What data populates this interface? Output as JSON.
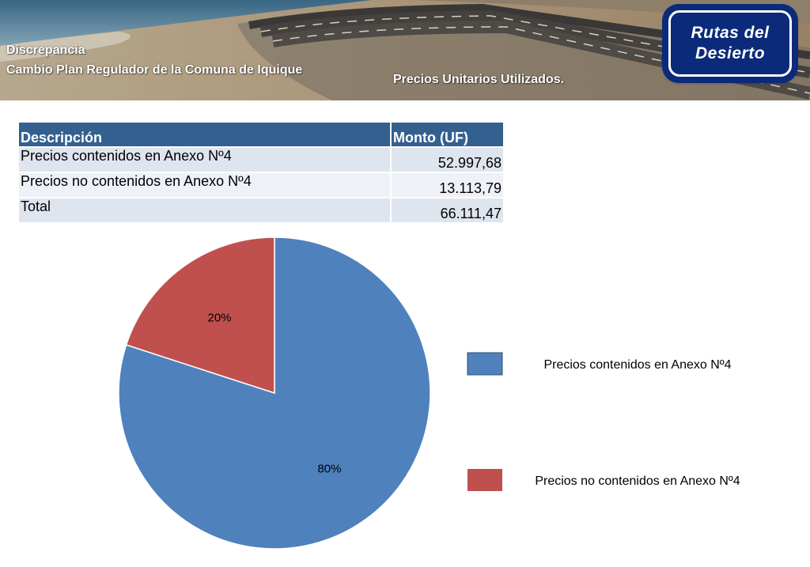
{
  "header": {
    "line1": "Discrepancia",
    "line2": "Cambio Plan Regulador de la Comuna de Iquique",
    "subtitle": "Precios Unitarios Utilizados.",
    "logo_line1": "Rutas del",
    "logo_line2": "Desierto"
  },
  "table": {
    "headers": [
      "Descripción",
      "Monto (UF)"
    ],
    "rows": [
      [
        "Precios contenidos en Anexo Nº4",
        "52.997,68"
      ],
      [
        "Precios no contenidos en Anexo Nº4",
        "13.113,79"
      ],
      [
        "Total",
        "66.111,47"
      ]
    ]
  },
  "chart_data": {
    "type": "pie",
    "categories": [
      "Precios contenidos en Anexo Nº4",
      "Precios no contenidos en Anexo Nº4"
    ],
    "values": [
      80,
      20
    ],
    "labels": [
      "80%",
      "20%"
    ],
    "colors": [
      "#4f81bd",
      "#c0504d"
    ],
    "legend": "right"
  }
}
